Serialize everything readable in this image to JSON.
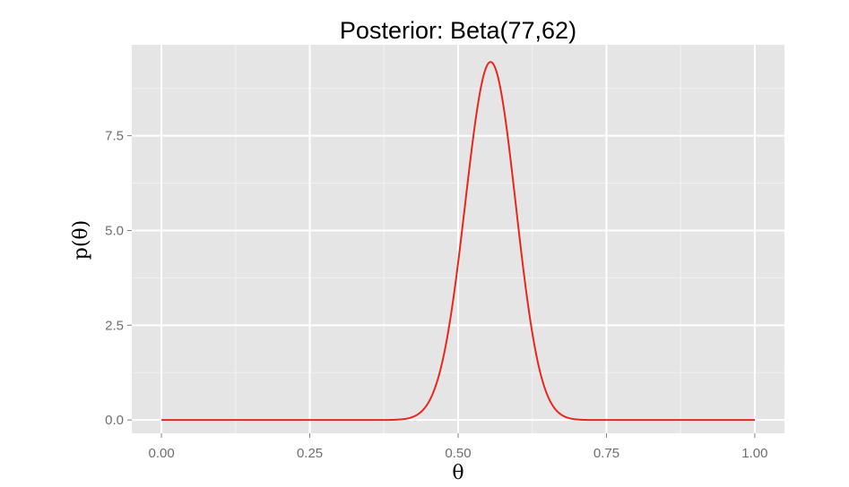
{
  "chart_data": {
    "type": "line",
    "title": "Posterior: Beta(77,62)",
    "xlabel": "θ",
    "ylabel": "p(θ)",
    "distribution": {
      "family": "Beta",
      "alpha": 77,
      "beta": 62
    },
    "xlim": [
      -0.05,
      1.05
    ],
    "ylim": [
      -0.35,
      9.9
    ],
    "x_ticks": [
      0,
      0.25,
      0.5,
      0.75,
      1
    ],
    "x_tick_labels": [
      "0.00",
      "0.25",
      "0.50",
      "0.75",
      "1.00"
    ],
    "y_ticks": [
      0,
      2.5,
      5,
      7.5
    ],
    "y_tick_labels": [
      "0.0",
      "2.5",
      "5.0",
      "7.5"
    ],
    "grid": true,
    "legend": "none",
    "series": [
      {
        "color": "#e8261c",
        "x": [
          0.0,
          0.38,
          0.4,
          0.42,
          0.44,
          0.46,
          0.48,
          0.5,
          0.52,
          0.54,
          0.554,
          0.57,
          0.59,
          0.61,
          0.63,
          0.65,
          0.67,
          0.69,
          0.72,
          1.0
        ],
        "values": [
          0.0,
          0.005,
          0.02,
          0.08,
          0.28,
          0.78,
          1.85,
          3.65,
          6.0,
          8.44,
          9.4,
          8.7,
          6.72,
          4.15,
          2.03,
          0.77,
          0.22,
          0.05,
          0.01,
          0.0
        ]
      }
    ]
  },
  "colors": {
    "panel_background": "#e5e5e5",
    "grid_major": "#ffffff",
    "grid_minor": "#f2f2f2",
    "line": "#e8261c"
  }
}
